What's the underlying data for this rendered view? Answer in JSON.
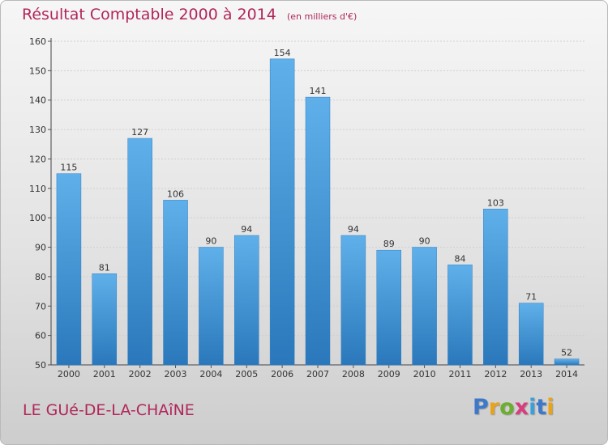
{
  "chart_data": {
    "type": "bar",
    "title": "Résultat Comptable 2000 à 2014",
    "subtitle": "(en milliers d'€)",
    "categories": [
      "2000",
      "2001",
      "2002",
      "2003",
      "2004",
      "2005",
      "2006",
      "2007",
      "2008",
      "2009",
      "2010",
      "2011",
      "2012",
      "2013",
      "2014"
    ],
    "values": [
      115,
      81,
      127,
      106,
      90,
      94,
      154,
      141,
      94,
      89,
      90,
      84,
      103,
      71,
      52
    ],
    "ylim": [
      50,
      160
    ],
    "yticks": [
      50,
      60,
      70,
      80,
      90,
      100,
      110,
      120,
      130,
      140,
      150,
      160
    ],
    "grid": true,
    "bar_color_top": "#5fb0ea",
    "bar_color_bottom": "#2a78bb"
  },
  "footer": {
    "commune": "LE GUé-DE-LA-CHAîNE",
    "brand_letters": [
      "P",
      "r",
      "o",
      "x",
      "i",
      "t",
      "i"
    ]
  }
}
